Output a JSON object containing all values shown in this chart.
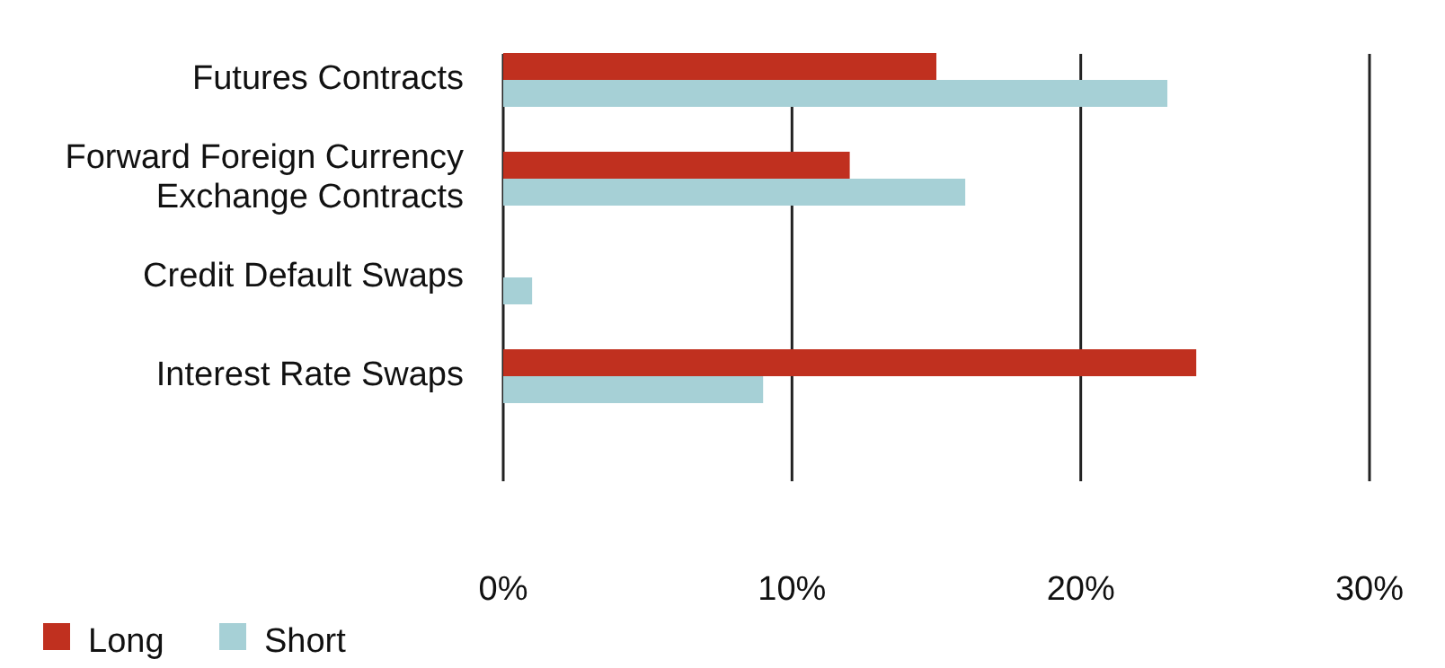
{
  "chart_data": {
    "type": "bar",
    "orientation": "horizontal",
    "categories": [
      "Futures Contracts",
      "Forward Foreign Currency\nExchange Contracts",
      "Credit Default Swaps",
      "Interest Rate Swaps"
    ],
    "series": [
      {
        "name": "Long",
        "color": "#c0301f",
        "values": [
          15,
          12,
          0,
          24
        ]
      },
      {
        "name": "Short",
        "color": "#a6d0d6",
        "values": [
          23,
          16,
          1,
          9
        ]
      }
    ],
    "xlim": [
      0,
      30
    ],
    "xticks": [
      {
        "value": 0,
        "label": "0%"
      },
      {
        "value": 10,
        "label": "10%"
      },
      {
        "value": 20,
        "label": "20%"
      },
      {
        "value": 30,
        "label": "30%"
      }
    ],
    "grid": "x",
    "legend": "bottom left"
  }
}
